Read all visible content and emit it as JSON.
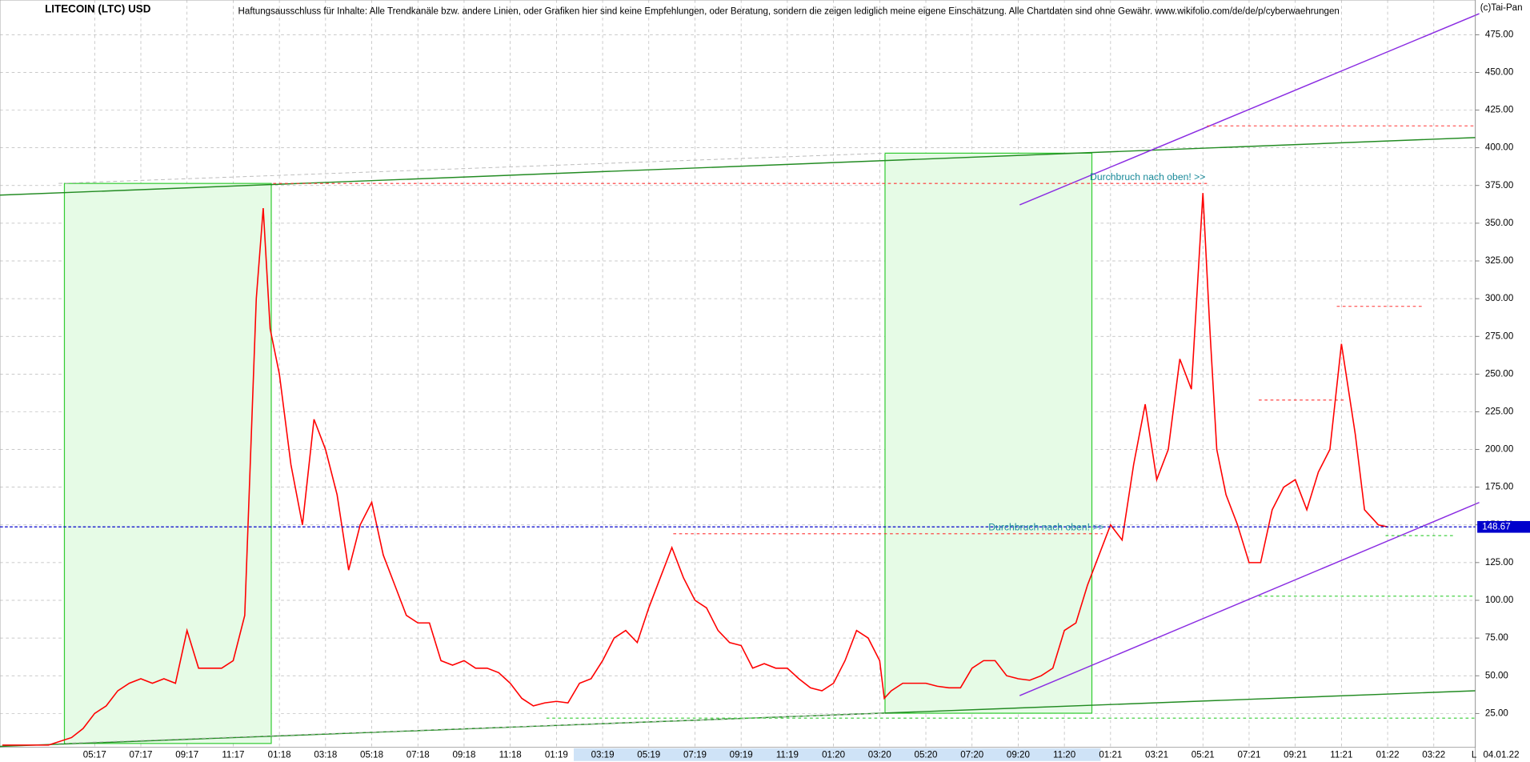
{
  "chart_data": {
    "type": "line",
    "title": "LITECOIN (LTC) USD",
    "subtitle": "Haftungsausschluss für Inhalte: Alle Trendkanäle bzw. andere Linien, oder Grafiken hier sind keine Empfehlungen, oder Beratung, sondern die zeigen lediglich meine eigene Einschätzung. Alle Chartdaten sind ohne Gewähr.  www.wikifolio.com/de/de/p/cyberwaehrungen",
    "copyright": "(c)Tai-Pan",
    "annotations": [
      "Durchbruch nach oben! >>",
      "Durchbruch nach oben! >>"
    ],
    "last_price": 148.67,
    "last_date": "04.01.22",
    "axis_marker": "L",
    "color": "#ff0000",
    "grid": true,
    "x": [
      0,
      1,
      2,
      3,
      3.5,
      4,
      4.5,
      5,
      5.5,
      6,
      6.5,
      7,
      7.5,
      8,
      8.5,
      9,
      9.5,
      10,
      10.5,
      11,
      11.3,
      11.6,
      12,
      12.5,
      13,
      13.5,
      14,
      14.5,
      15,
      15.5,
      16,
      16.5,
      17,
      17.5,
      18,
      18.5,
      19,
      19.5,
      20,
      20.5,
      21,
      21.5,
      22,
      22.5,
      23,
      23.5,
      24,
      24.5,
      25,
      25.5,
      26,
      26.5,
      27,
      27.5,
      28,
      28.5,
      29,
      29.5,
      30,
      30.5,
      31,
      31.5,
      32,
      32.5,
      33,
      33.5,
      34,
      34.5,
      35,
      35.5,
      36,
      36.5,
      37,
      37.5,
      38,
      38.2,
      38.5,
      39,
      39.5,
      40,
      40.5,
      41,
      41.5,
      42,
      42.5,
      43,
      43.5,
      44,
      44.5,
      45,
      45.5,
      46,
      46.5,
      47,
      47.5,
      48,
      48.5,
      49,
      49.5,
      50,
      50.5,
      51,
      51.5,
      52,
      52.3,
      52.6,
      53,
      53.5,
      54,
      54.5,
      55,
      55.5,
      56,
      56.5,
      57,
      57.5,
      58,
      58.3,
      58.6,
      59,
      59.3,
      59.6,
      60
    ],
    "values": [
      4,
      4,
      4,
      9,
      15,
      25,
      30,
      40,
      45,
      48,
      45,
      48,
      45,
      80,
      55,
      55,
      55,
      60,
      90,
      300,
      360,
      280,
      250,
      190,
      150,
      220,
      200,
      170,
      120,
      150,
      165,
      130,
      110,
      90,
      85,
      85,
      60,
      57,
      60,
      55,
      55,
      52,
      45,
      35,
      30,
      32,
      33,
      32,
      45,
      48,
      60,
      75,
      80,
      72,
      95,
      115,
      135,
      115,
      100,
      95,
      80,
      72,
      70,
      55,
      58,
      55,
      55,
      48,
      42,
      40,
      45,
      60,
      80,
      75,
      60,
      35,
      40,
      45,
      45,
      45,
      43,
      42,
      42,
      55,
      60,
      60,
      50,
      48,
      47,
      50,
      55,
      80,
      85,
      110,
      130,
      150,
      140,
      190,
      230,
      180,
      200,
      260,
      240,
      370,
      280,
      200,
      170,
      150,
      125,
      125,
      160,
      175,
      180,
      160,
      185,
      200,
      270,
      240,
      210,
      160,
      155,
      150,
      148.67
    ],
    "xlim": [
      -0.1,
      63.8
    ],
    "ylim": [
      2.5,
      498
    ],
    "xticks": [
      {
        "value": 4,
        "label": "05:17"
      },
      {
        "value": 6,
        "label": "07:17"
      },
      {
        "value": 8,
        "label": "09:17"
      },
      {
        "value": 10,
        "label": "11:17"
      },
      {
        "value": 12,
        "label": "01:18"
      },
      {
        "value": 14,
        "label": "03:18"
      },
      {
        "value": 16,
        "label": "05:18"
      },
      {
        "value": 18,
        "label": "07:18"
      },
      {
        "value": 20,
        "label": "09:18"
      },
      {
        "value": 22,
        "label": "11:18"
      },
      {
        "value": 24,
        "label": "01:19"
      },
      {
        "value": 26,
        "label": "03:19"
      },
      {
        "value": 28,
        "label": "05:19"
      },
      {
        "value": 30,
        "label": "07:19"
      },
      {
        "value": 32,
        "label": "09:19"
      },
      {
        "value": 34,
        "label": "11:19"
      },
      {
        "value": 36,
        "label": "01:20"
      },
      {
        "value": 38,
        "label": "03:20"
      },
      {
        "value": 40,
        "label": "05:20"
      },
      {
        "value": 42,
        "label": "07:20"
      },
      {
        "value": 44,
        "label": "09:20"
      },
      {
        "value": 46,
        "label": "11:20"
      },
      {
        "value": 48,
        "label": "01:21"
      },
      {
        "value": 50,
        "label": "03:21"
      },
      {
        "value": 52,
        "label": "05:21"
      },
      {
        "value": 54,
        "label": "07:21"
      },
      {
        "value": 56,
        "label": "09:21"
      },
      {
        "value": 58,
        "label": "11:21"
      },
      {
        "value": 60,
        "label": "01:22"
      },
      {
        "value": 62,
        "label": "03:22"
      }
    ],
    "yticks": [
      {
        "value": 25,
        "label": "25.00"
      },
      {
        "value": 50,
        "label": "50.00"
      },
      {
        "value": 75,
        "label": "75.00"
      },
      {
        "value": 100,
        "label": "100.00"
      },
      {
        "value": 125,
        "label": "125.00"
      },
      {
        "value": 150,
        "label": "150.00"
      },
      {
        "value": 175,
        "label": "175.00"
      },
      {
        "value": 200,
        "label": "200.00"
      },
      {
        "value": 225,
        "label": "225.00"
      },
      {
        "value": 250,
        "label": "250.00"
      },
      {
        "value": 275,
        "label": "275.00"
      },
      {
        "value": 300,
        "label": "300.00"
      },
      {
        "value": 325,
        "label": "325.00"
      },
      {
        "value": 350,
        "label": "350.00"
      },
      {
        "value": 375,
        "label": "375.00"
      },
      {
        "value": 400,
        "label": "400.00"
      },
      {
        "value": 425,
        "label": "425.00"
      },
      {
        "value": 450,
        "label": "450.00"
      },
      {
        "value": 475,
        "label": "475.00"
      }
    ]
  }
}
